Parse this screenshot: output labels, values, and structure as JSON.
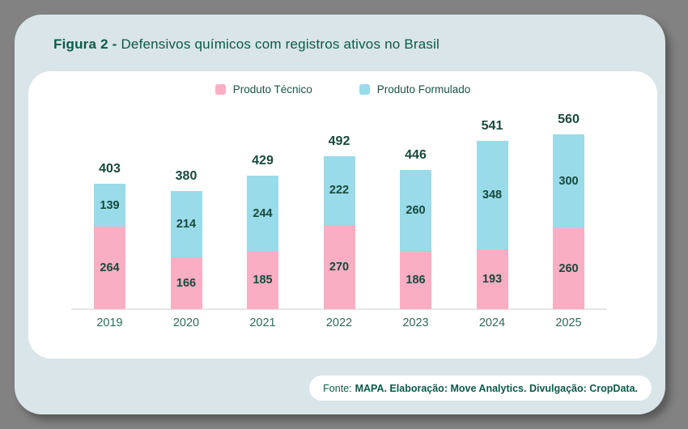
{
  "figure": {
    "label": "Figura 2 -",
    "title": " Defensivos químicos com registros ativos no Brasil"
  },
  "legend": [
    {
      "label": "Produto Técnico",
      "color": "#faaec3"
    },
    {
      "label": "Produto Formulado",
      "color": "#99dbe9"
    }
  ],
  "chart_data": {
    "type": "bar",
    "stacked": true,
    "title": "Defensivos químicos com registros ativos no Brasil",
    "categories": [
      "2019",
      "2020",
      "2021",
      "2022",
      "2023",
      "2024",
      "2025"
    ],
    "series": [
      {
        "name": "Produto Técnico",
        "color": "#faaec3",
        "values": [
          264,
          166,
          185,
          270,
          186,
          193,
          260
        ]
      },
      {
        "name": "Produto Formulado",
        "color": "#99dbe9",
        "values": [
          139,
          214,
          244,
          222,
          260,
          348,
          300
        ]
      }
    ],
    "totals": [
      403,
      380,
      429,
      492,
      446,
      541,
      560
    ],
    "xlabel": "",
    "ylabel": "",
    "ylim": [
      0,
      600
    ],
    "grid": false,
    "legend_position": "top",
    "value_labels": "inside-segments-and-total-above"
  },
  "footer": {
    "prefix": "Fonte:",
    "credits": "MAPA. Elaboração: Move Analytics. Divulgação: CropData."
  },
  "colors": {
    "page_background": "#828282",
    "card_background": "#d9e5e9",
    "panel_background": "#ffffff",
    "title_text": "#0a5a49",
    "value_text": "#17493c",
    "axis_text": "#2e685b",
    "axis_line": "#e4e7e7"
  }
}
